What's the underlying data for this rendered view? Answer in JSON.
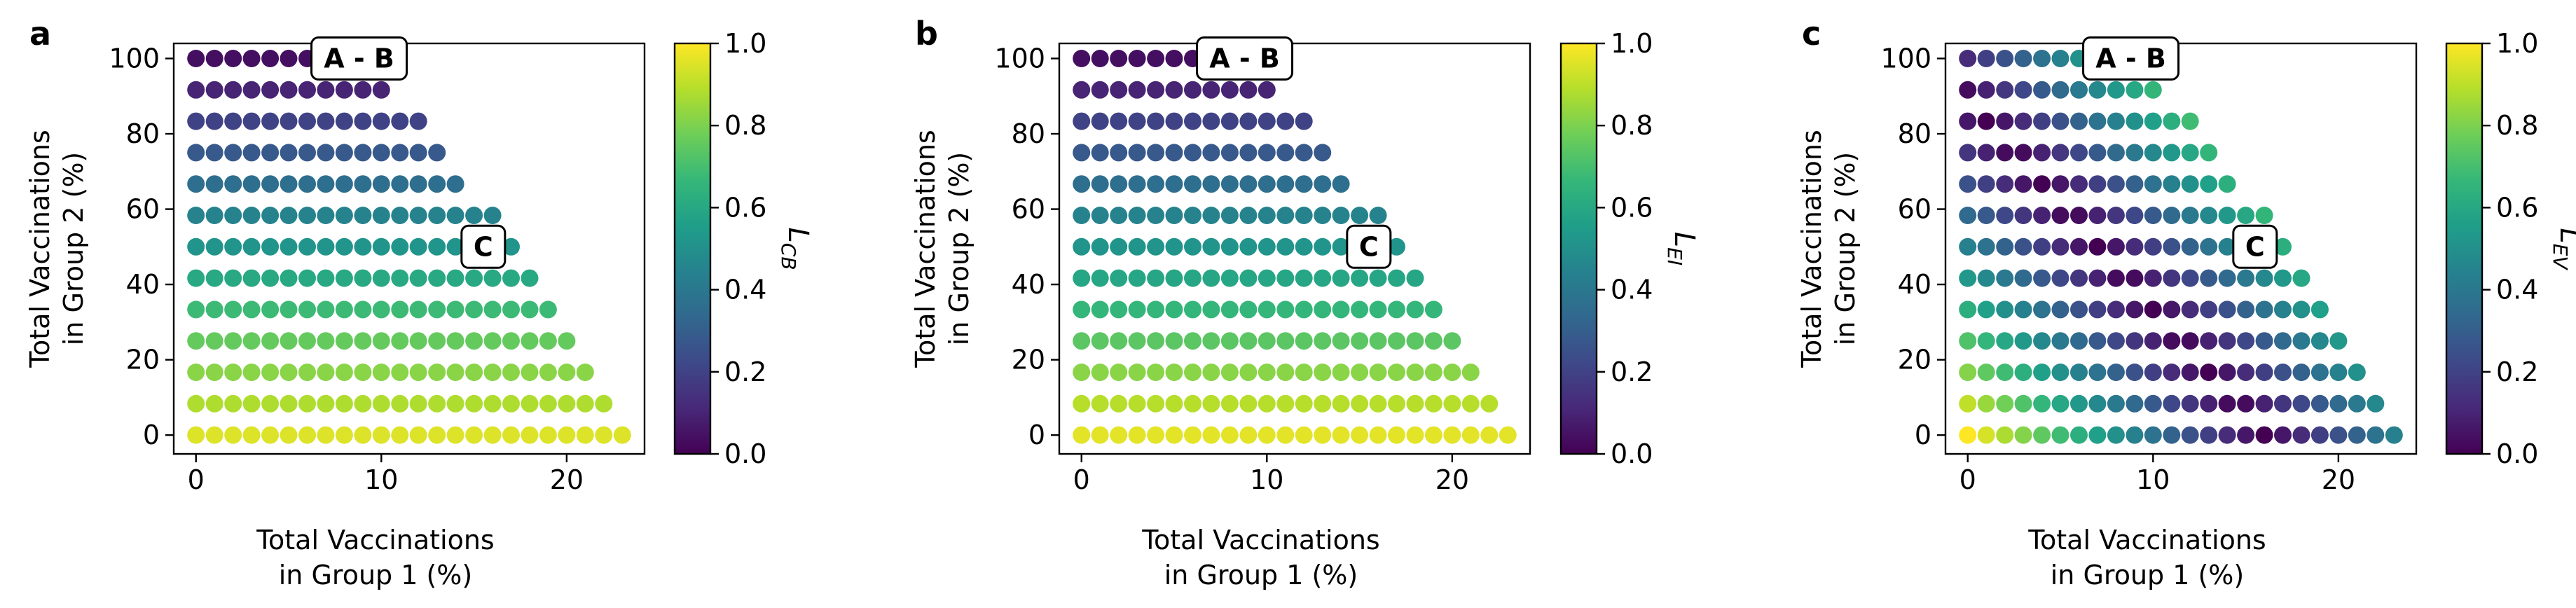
{
  "figure": {
    "colormap": "viridis",
    "viridis_stops": [
      "#440154",
      "#482878",
      "#3e4989",
      "#31688e",
      "#26828e",
      "#1f9e89",
      "#35b779",
      "#6ece58",
      "#b5de2b",
      "#fde725"
    ]
  },
  "chart_data": [
    {
      "type": "scatter",
      "panel": "a",
      "xlabel": [
        "Total Vaccinations",
        "in Group 1 (%)"
      ],
      "ylabel": [
        "Total Vaccinations",
        "in Group 2 (%)"
      ],
      "xlim": [
        -1.2,
        24.2
      ],
      "ylim": [
        -5,
        104
      ],
      "xticks": [
        0,
        10,
        20
      ],
      "yticks": [
        0,
        20,
        40,
        60,
        80,
        100
      ],
      "colorbar": {
        "label_main": "L",
        "label_sub": "CB",
        "range": [
          0,
          1
        ],
        "ticks": [
          "0.0",
          "0.2",
          "0.4",
          "0.6",
          "0.8",
          "1.0"
        ]
      },
      "grid": false,
      "x_step": 1,
      "y_values": [
        0,
        8.33,
        16.67,
        25,
        33.33,
        41.67,
        50,
        58.33,
        66.67,
        75,
        83.33,
        91.67,
        100
      ],
      "row_max_x": [
        23,
        22,
        21,
        20,
        19,
        18,
        17,
        16,
        14,
        13,
        12,
        10,
        9
      ],
      "row_values": [
        [
          0.95
        ],
        [
          0.88
        ],
        [
          0.82
        ],
        [
          0.76
        ],
        [
          0.68
        ],
        [
          0.6
        ],
        [
          0.52
        ],
        [
          0.45
        ],
        [
          0.36
        ],
        [
          0.28
        ],
        [
          0.2
        ],
        [
          0.1
        ],
        [
          0.04
        ]
      ],
      "annotations": [
        {
          "text": "A - B",
          "x": 8.8,
          "y": 100
        },
        {
          "text": "C",
          "x": 15.5,
          "y": 50
        }
      ]
    },
    {
      "type": "scatter",
      "panel": "b",
      "xlabel": [
        "Total Vaccinations",
        "in Group 1 (%)"
      ],
      "ylabel": [
        "Total Vaccinations",
        "in Group 2 (%)"
      ],
      "xlim": [
        -1.2,
        24.2
      ],
      "ylim": [
        -5,
        104
      ],
      "xticks": [
        0,
        10,
        20
      ],
      "yticks": [
        0,
        20,
        40,
        60,
        80,
        100
      ],
      "colorbar": {
        "label_main": "L",
        "label_sub": "EI",
        "range": [
          0,
          1
        ],
        "ticks": [
          "0.0",
          "0.2",
          "0.4",
          "0.6",
          "0.8",
          "1.0"
        ]
      },
      "grid": false,
      "x_step": 1,
      "y_values": [
        0,
        8.33,
        16.67,
        25,
        33.33,
        41.67,
        50,
        58.33,
        66.67,
        75,
        83.33,
        91.67,
        100
      ],
      "row_max_x": [
        23,
        22,
        21,
        20,
        19,
        18,
        17,
        16,
        14,
        13,
        12,
        10,
        9
      ],
      "row_values": [
        [
          0.96
        ],
        [
          0.89
        ],
        [
          0.82
        ],
        [
          0.74
        ],
        [
          0.66
        ],
        [
          0.59
        ],
        [
          0.52
        ],
        [
          0.45
        ],
        [
          0.36
        ],
        [
          0.28
        ],
        [
          0.2
        ],
        [
          0.1
        ],
        [
          0.04
        ]
      ],
      "annotations": [
        {
          "text": "A - B",
          "x": 8.8,
          "y": 100
        },
        {
          "text": "C",
          "x": 15.5,
          "y": 50
        }
      ]
    },
    {
      "type": "scatter",
      "panel": "c",
      "xlabel": [
        "Total Vaccinations",
        "in Group 1 (%)"
      ],
      "ylabel": [
        "Total Vaccinations",
        "in Group 2 (%)"
      ],
      "xlim": [
        -1.2,
        24.2
      ],
      "ylim": [
        -5,
        104
      ],
      "xticks": [
        0,
        10,
        20
      ],
      "yticks": [
        0,
        20,
        40,
        60,
        80,
        100
      ],
      "colorbar": {
        "label_main": "L",
        "label_sub": "EV",
        "range": [
          0,
          1
        ],
        "ticks": [
          "0.0",
          "0.2",
          "0.4",
          "0.6",
          "0.8",
          "1.0"
        ]
      },
      "grid": false,
      "x_step": 1,
      "y_values": [
        0,
        8.33,
        16.67,
        25,
        33.33,
        41.67,
        50,
        58.33,
        66.67,
        75,
        83.33,
        91.67,
        100
      ],
      "row_max_x": [
        23,
        22,
        21,
        20,
        19,
        18,
        17,
        16,
        14,
        13,
        12,
        10,
        9
      ],
      "value_model": "V-shaped: value = |x + 1.5*(y/8.33) - 16| / 16 (approx.)",
      "annotations": [
        {
          "text": "A - B",
          "x": 8.8,
          "y": 100
        },
        {
          "text": "C",
          "x": 15.5,
          "y": 50
        }
      ]
    }
  ]
}
